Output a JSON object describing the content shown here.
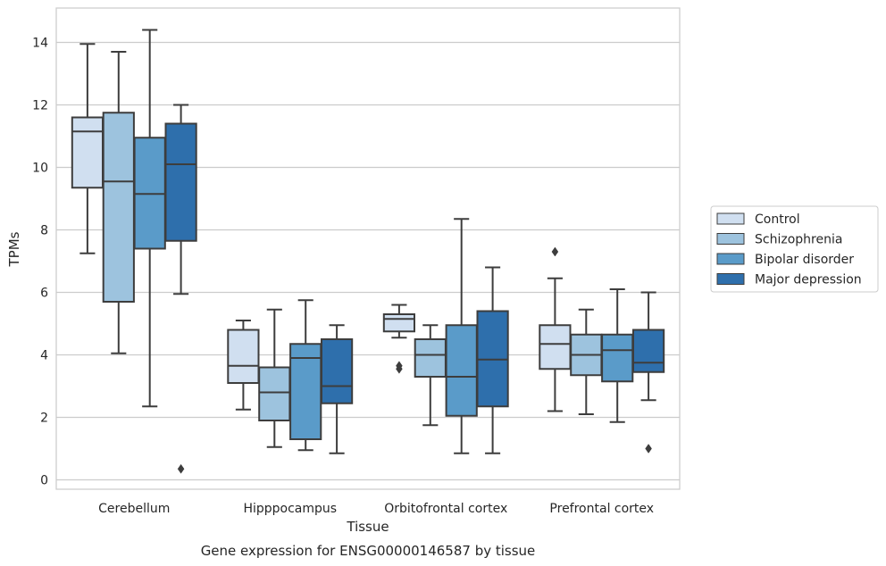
{
  "caption": "Gene expression for ENSG00000146587 by tissue",
  "chart_data": {
    "type": "box",
    "xlabel": "Tissue",
    "ylabel": "TPMs",
    "ylim": [
      -0.3,
      15.1
    ],
    "yticks": [
      0,
      2,
      4,
      6,
      8,
      10,
      12,
      14
    ],
    "grid": "horizontal",
    "legend_position": "right",
    "categories": [
      "Cerebellum",
      "Hipppocampus",
      "Orbitofrontal cortex",
      "Prefrontal cortex"
    ],
    "series": [
      {
        "name": "Control",
        "color": "#d0dff0",
        "boxes": [
          {
            "whislo": 7.25,
            "q1": 9.35,
            "med": 11.15,
            "q3": 11.6,
            "whishi": 13.95,
            "fliers": []
          },
          {
            "whislo": 2.25,
            "q1": 3.1,
            "med": 3.65,
            "q3": 4.8,
            "whishi": 5.1,
            "fliers": []
          },
          {
            "whislo": 4.55,
            "q1": 4.75,
            "med": 5.15,
            "q3": 5.3,
            "whishi": 5.6,
            "fliers": [
              3.55,
              3.65
            ]
          },
          {
            "whislo": 2.2,
            "q1": 3.55,
            "med": 4.35,
            "q3": 4.95,
            "whishi": 6.45,
            "fliers": [
              7.3
            ]
          }
        ]
      },
      {
        "name": "Schizophrenia",
        "color": "#9dc3de",
        "boxes": [
          {
            "whislo": 4.05,
            "q1": 5.7,
            "med": 9.55,
            "q3": 11.75,
            "whishi": 13.7,
            "fliers": []
          },
          {
            "whislo": 1.05,
            "q1": 1.9,
            "med": 2.8,
            "q3": 3.6,
            "whishi": 5.45,
            "fliers": []
          },
          {
            "whislo": 1.75,
            "q1": 3.3,
            "med": 4.0,
            "q3": 4.5,
            "whishi": 4.95,
            "fliers": []
          },
          {
            "whislo": 2.1,
            "q1": 3.35,
            "med": 4.0,
            "q3": 4.65,
            "whishi": 5.45,
            "fliers": []
          }
        ]
      },
      {
        "name": "Bipolar disorder",
        "color": "#5a9bc9",
        "boxes": [
          {
            "whislo": 2.35,
            "q1": 7.4,
            "med": 9.15,
            "q3": 10.95,
            "whishi": 14.4,
            "fliers": []
          },
          {
            "whislo": 0.95,
            "q1": 1.3,
            "med": 3.9,
            "q3": 4.35,
            "whishi": 5.75,
            "fliers": []
          },
          {
            "whislo": 0.85,
            "q1": 2.05,
            "med": 3.3,
            "q3": 4.95,
            "whishi": 8.35,
            "fliers": []
          },
          {
            "whislo": 1.85,
            "q1": 3.15,
            "med": 4.15,
            "q3": 4.65,
            "whishi": 6.1,
            "fliers": []
          }
        ]
      },
      {
        "name": "Major depression",
        "color": "#2e6fac",
        "boxes": [
          {
            "whislo": 5.95,
            "q1": 7.65,
            "med": 10.1,
            "q3": 11.4,
            "whishi": 12.0,
            "fliers": [
              0.35
            ]
          },
          {
            "whislo": 0.85,
            "q1": 2.45,
            "med": 3.0,
            "q3": 4.5,
            "whishi": 4.95,
            "fliers": []
          },
          {
            "whislo": 0.85,
            "q1": 2.35,
            "med": 3.85,
            "q3": 5.4,
            "whishi": 6.8,
            "fliers": []
          },
          {
            "whislo": 2.55,
            "q1": 3.45,
            "med": 3.75,
            "q3": 4.8,
            "whishi": 6.0,
            "fliers": [
              1.0
            ]
          }
        ]
      }
    ]
  }
}
